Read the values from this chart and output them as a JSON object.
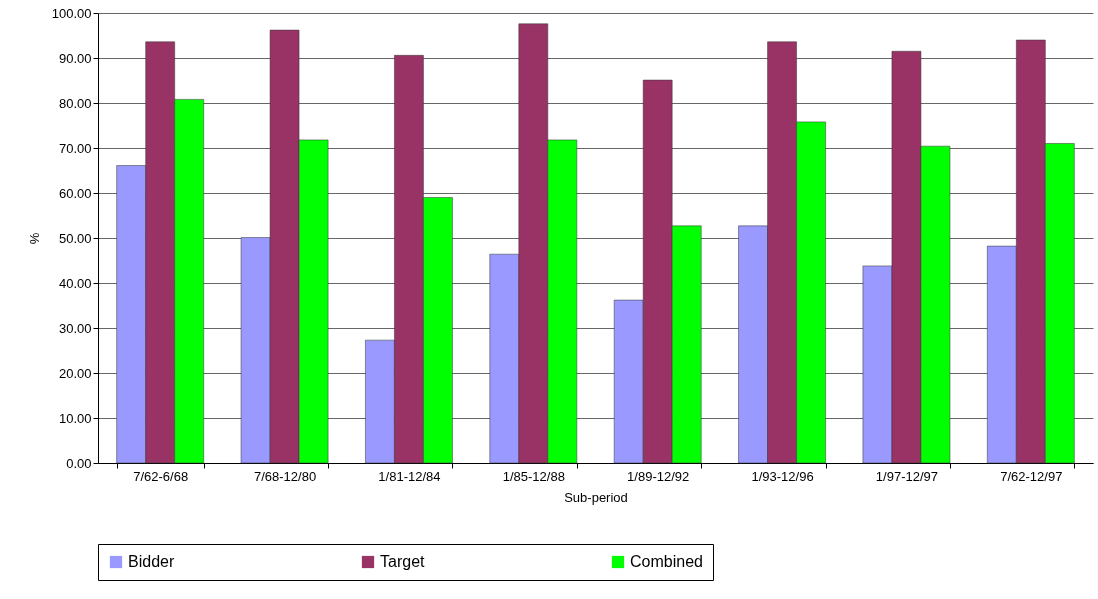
{
  "chart_data": {
    "type": "bar",
    "xlabel": "Sub-period",
    "ylabel": "%",
    "categories": [
      "7/62-6/68",
      "7/68-12/80",
      "1/81-12/84",
      "1/85-12/88",
      "1/89-12/92",
      "1/93-12/96",
      "1/97-12/97",
      "7/62-12/97"
    ],
    "series": [
      {
        "name": "Bidder",
        "color": "#9999ff",
        "values": [
          66.1,
          50.1,
          27.3,
          46.4,
          36.2,
          52.7,
          43.8,
          48.2
        ]
      },
      {
        "name": "Target",
        "color": "#993366",
        "values": [
          93.6,
          96.2,
          90.6,
          97.6,
          85.1,
          93.6,
          91.5,
          94.0
        ]
      },
      {
        "name": "Combined",
        "color": "#00ff00",
        "values": [
          80.8,
          71.8,
          59.0,
          71.8,
          52.7,
          75.8,
          70.4,
          71.0
        ]
      }
    ],
    "ylim": [
      0,
      100
    ],
    "yticks": [
      {
        "value": 0,
        "label": "0.00"
      },
      {
        "value": 10,
        "label": "10.00"
      },
      {
        "value": 20,
        "label": "20.00"
      },
      {
        "value": 30,
        "label": "30.00"
      },
      {
        "value": 40,
        "label": "40.00"
      },
      {
        "value": 50,
        "label": "50.00"
      },
      {
        "value": 60,
        "label": "60.00"
      },
      {
        "value": 70,
        "label": "70.00"
      },
      {
        "value": 80,
        "label": "80.00"
      },
      {
        "value": 90,
        "label": "90.00"
      },
      {
        "value": 100,
        "label": "100.00"
      }
    ],
    "grid": "y",
    "legend": "bottom"
  }
}
